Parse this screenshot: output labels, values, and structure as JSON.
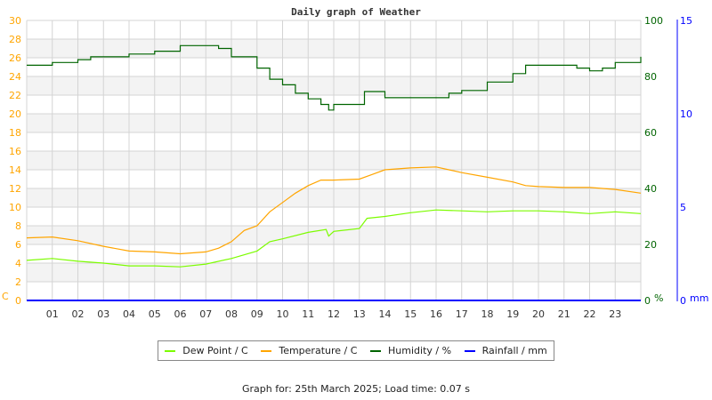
{
  "chart_data": {
    "type": "line",
    "title": "Daily graph of Weather",
    "x_ticks": [
      "01",
      "02",
      "03",
      "04",
      "05",
      "06",
      "07",
      "08",
      "09",
      "10",
      "11",
      "12",
      "13",
      "14",
      "15",
      "16",
      "17",
      "18",
      "19",
      "20",
      "21",
      "22",
      "23"
    ],
    "xlim": [
      0,
      24
    ],
    "grid": true,
    "axes": {
      "left": {
        "unit": "C",
        "ylim": [
          0,
          30
        ],
        "ticks": [
          0,
          2,
          4,
          6,
          8,
          10,
          12,
          14,
          16,
          18,
          20,
          22,
          24,
          26,
          28,
          30
        ],
        "color": "#ffa500"
      },
      "right": {
        "unit": "%",
        "ylim": [
          0,
          100
        ],
        "ticks": [
          0,
          20,
          40,
          60,
          80,
          100
        ],
        "color": "#006400"
      },
      "rain": {
        "unit": "mm",
        "ylim": [
          0,
          15
        ],
        "ticks": [
          0,
          5,
          10,
          15
        ],
        "color": "#0000ff"
      }
    },
    "legend_position": "bottom",
    "series": [
      {
        "name": "Dew Point / C",
        "axis": "left",
        "color": "#7cfc00",
        "x": [
          0,
          1,
          2,
          3,
          4,
          5,
          6,
          7,
          8,
          9,
          9.5,
          10,
          11,
          11.7,
          11.8,
          12,
          13,
          13.3,
          14,
          15,
          16,
          17,
          18,
          19,
          20,
          21,
          22,
          23,
          24
        ],
        "y": [
          4.3,
          4.5,
          4.2,
          4.0,
          3.7,
          3.7,
          3.6,
          3.9,
          4.5,
          5.3,
          6.3,
          6.6,
          7.3,
          7.6,
          6.9,
          7.4,
          7.7,
          8.8,
          9.0,
          9.4,
          9.7,
          9.6,
          9.5,
          9.6,
          9.6,
          9.5,
          9.3,
          9.5,
          9.3
        ]
      },
      {
        "name": "Temperature / C",
        "axis": "left",
        "color": "#ffa500",
        "x": [
          0,
          1,
          2,
          3,
          4,
          5,
          6,
          7,
          7.5,
          8,
          8.5,
          9,
          9.5,
          10,
          10.5,
          11,
          11.5,
          12,
          13,
          13.5,
          14,
          15,
          16,
          16.5,
          17,
          18,
          19,
          19.5,
          20,
          21,
          22,
          23,
          24
        ],
        "y": [
          6.7,
          6.8,
          6.4,
          5.8,
          5.3,
          5.2,
          5.0,
          5.2,
          5.6,
          6.3,
          7.5,
          8.0,
          9.5,
          10.5,
          11.5,
          12.3,
          12.9,
          12.9,
          13.0,
          13.5,
          14.0,
          14.2,
          14.3,
          14.0,
          13.7,
          13.2,
          12.7,
          12.3,
          12.2,
          12.1,
          12.1,
          11.9,
          11.5
        ]
      },
      {
        "name": "Humidity / %",
        "axis": "right",
        "color": "#006400",
        "x": [
          0,
          1,
          2,
          2.5,
          3,
          4,
          5,
          6,
          7,
          7.5,
          8,
          9,
          9.5,
          10,
          10.5,
          11,
          11.5,
          11.8,
          12,
          13,
          13.2,
          14,
          15,
          16,
          16.5,
          17,
          18,
          19,
          19.5,
          20,
          21,
          21.5,
          22,
          22.5,
          23,
          24
        ],
        "y": [
          84,
          85,
          86,
          87,
          87,
          88,
          89,
          91,
          91,
          90,
          87,
          83,
          79,
          77,
          74,
          72,
          70,
          68,
          70,
          70,
          74.6,
          72.4,
          72.4,
          72.4,
          74,
          75,
          78,
          81,
          84,
          84,
          84,
          83,
          82,
          83,
          85,
          87
        ]
      },
      {
        "name": "Rainfall / mm",
        "axis": "rain",
        "color": "#0000ff",
        "x": [
          0,
          24
        ],
        "y": [
          0,
          0
        ]
      }
    ]
  },
  "footer": "Graph for: 25th March 2025; Load time: 0.07 s"
}
